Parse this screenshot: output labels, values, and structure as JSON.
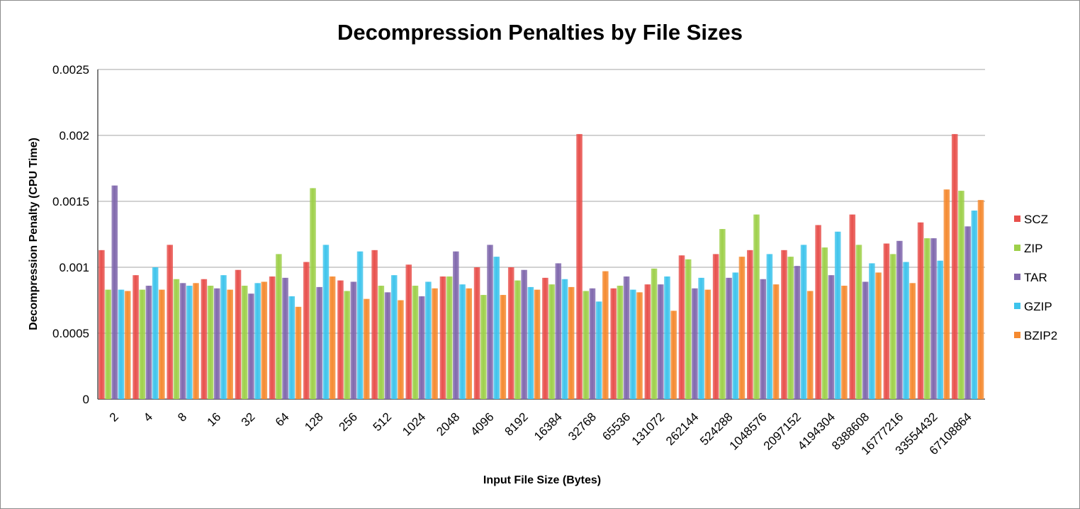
{
  "chart_data": {
    "type": "bar",
    "title": "Decompression Penalties by File Sizes",
    "xlabel": "Input File Size (Bytes)",
    "ylabel": "Decompression Penalty (CPU Time)",
    "ylim": [
      0,
      0.0025
    ],
    "yticks": [
      "0",
      "0.0005",
      "0.001",
      "0.0015",
      "0.002",
      "0.0025"
    ],
    "grid": true,
    "legend_position": "right",
    "categories": [
      "2",
      "4",
      "8",
      "16",
      "32",
      "64",
      "128",
      "256",
      "512",
      "1024",
      "2048",
      "4096",
      "8192",
      "16384",
      "32768",
      "65536",
      "131072",
      "262144",
      "524288",
      "1048576",
      "2097152",
      "4194304",
      "8388608",
      "16777216",
      "33554432",
      "67108864"
    ],
    "series": [
      {
        "name": "SCZ",
        "color": "#e8504c",
        "values": [
          0.00113,
          0.00094,
          0.00117,
          0.00091,
          0.00098,
          0.00093,
          0.00104,
          0.0009,
          0.00113,
          0.00102,
          0.00093,
          0.001,
          0.001,
          0.00092,
          0.00201,
          0.00084,
          0.00087,
          0.00109,
          0.0011,
          0.00113,
          0.00113,
          0.00132,
          0.0014,
          0.00118,
          0.00134,
          0.00201
        ]
      },
      {
        "name": "ZIP",
        "color": "#9ed04a",
        "values": [
          0.00083,
          0.00083,
          0.00091,
          0.00086,
          0.00086,
          0.0011,
          0.0016,
          0.00082,
          0.00086,
          0.00086,
          0.00093,
          0.00079,
          0.0009,
          0.00087,
          0.00082,
          0.00086,
          0.00099,
          0.00106,
          0.00129,
          0.0014,
          0.00108,
          0.00115,
          0.00117,
          0.0011,
          0.00122,
          0.00158
        ]
      },
      {
        "name": "TAR",
        "color": "#8068ad",
        "values": [
          0.00162,
          0.00086,
          0.00088,
          0.00084,
          0.0008,
          0.00092,
          0.00085,
          0.00089,
          0.00081,
          0.00078,
          0.00112,
          0.00117,
          0.00098,
          0.00103,
          0.00084,
          0.00093,
          0.00087,
          0.00084,
          0.00092,
          0.00091,
          0.00101,
          0.00094,
          0.00089,
          0.0012,
          0.00122,
          0.00131
        ]
      },
      {
        "name": "GZIP",
        "color": "#3ec4ec",
        "values": [
          0.00083,
          0.001,
          0.00086,
          0.00094,
          0.00088,
          0.00078,
          0.00117,
          0.00112,
          0.00094,
          0.00089,
          0.00087,
          0.00108,
          0.00085,
          0.00091,
          0.00074,
          0.00083,
          0.00093,
          0.00092,
          0.00096,
          0.0011,
          0.00117,
          0.00127,
          0.00103,
          0.00104,
          0.00105,
          0.00143
        ]
      },
      {
        "name": "BZIP2",
        "color": "#f58a30",
        "values": [
          0.00082,
          0.00083,
          0.00088,
          0.00083,
          0.00089,
          0.0007,
          0.00093,
          0.00076,
          0.00075,
          0.00084,
          0.00084,
          0.00079,
          0.00083,
          0.00085,
          0.00097,
          0.00081,
          0.00067,
          0.00083,
          0.00108,
          0.00087,
          0.00082,
          0.00086,
          0.00096,
          0.00088,
          0.00159,
          0.00151
        ]
      }
    ]
  }
}
